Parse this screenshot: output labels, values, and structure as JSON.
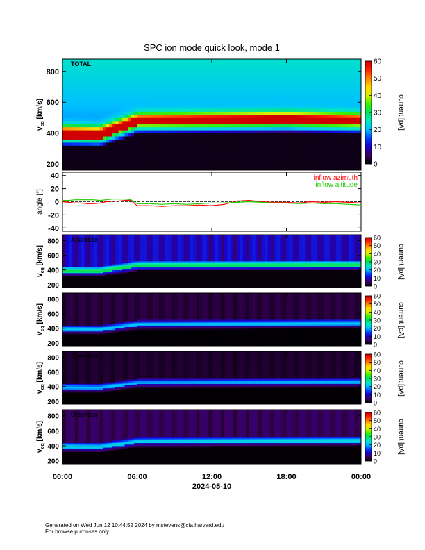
{
  "title": "SPC ion mode quick look, mode 1",
  "date_label": "2024-05-10",
  "x_ticks": [
    "00:00",
    "06:00",
    "12:00",
    "18:00",
    "00:00"
  ],
  "footer": {
    "line1": "Generated on Wed Jun 12 10:44:52 2024 by mstevens@cfa.harvard.edu",
    "line2": "For browse purposes only."
  },
  "colorbar": {
    "label": "current [pA]",
    "ticks": [
      0,
      10,
      20,
      30,
      40,
      50,
      60
    ],
    "range": [
      0,
      60
    ],
    "stops": [
      "#000000",
      "#3b005a",
      "#1b00c8",
      "#0040ff",
      "#00c0ff",
      "#00e8c0",
      "#00e060",
      "#40f000",
      "#d8f000",
      "#ffd800",
      "#ff8000",
      "#ff2000",
      "#d00000"
    ]
  },
  "chart_data": [
    {
      "type": "heatmap",
      "panel": "total",
      "label": "TOTAL",
      "ylabel": "v",
      "ylabel_sub": "eq",
      "ylabel_unit": " [km/s]",
      "ylim": [
        160,
        880
      ],
      "yticks": [
        200,
        400,
        600,
        800
      ],
      "xlim_hours": [
        0,
        24
      ],
      "peak_velocity_kms": [
        {
          "t": 0,
          "v": 390
        },
        {
          "t": 3,
          "v": 385
        },
        {
          "t": 6,
          "v": 470
        },
        {
          "t": 12,
          "v": 475
        },
        {
          "t": 18,
          "v": 480
        },
        {
          "t": 24,
          "v": 470
        }
      ],
      "peak_current_pA": 60,
      "background_current_pA": 24
    },
    {
      "type": "line",
      "panel": "angle",
      "ylabel": "angle [°]",
      "ylim": [
        -45,
        45
      ],
      "yticks": [
        -40,
        -20,
        0,
        20,
        40
      ],
      "xlim_hours": [
        0,
        24
      ],
      "series": [
        {
          "name": "inflow azimuth",
          "color": "#ff0000",
          "x": [
            0,
            0.5,
            1,
            1.5,
            2,
            2.5,
            3,
            3.5,
            4,
            4.5,
            5,
            5.5,
            6,
            7,
            8,
            9,
            10,
            11,
            12,
            13,
            14,
            15,
            16,
            17,
            18,
            19,
            20,
            21,
            22,
            23,
            24
          ],
          "y": [
            0,
            -1,
            -2,
            -2,
            -3,
            -3,
            -2,
            0,
            1,
            1,
            2,
            2,
            -6,
            -6,
            -7,
            -6,
            -6,
            -5,
            -6,
            -4,
            1,
            2,
            0,
            -1,
            -1,
            -2,
            0,
            -1,
            0,
            -1,
            -2
          ]
        },
        {
          "name": "inflow altitude",
          "color": "#22cc00",
          "x": [
            0,
            0.5,
            1,
            1.5,
            2,
            2.5,
            3,
            3.5,
            4,
            4.5,
            5,
            5.5,
            6,
            7,
            8,
            9,
            10,
            11,
            12,
            13,
            14,
            15,
            16,
            17,
            18,
            19,
            20,
            21,
            22,
            23,
            24
          ],
          "y": [
            2,
            2,
            3,
            3,
            3,
            3,
            2,
            3,
            4,
            4,
            4,
            3,
            -3,
            -3,
            -4,
            -3,
            -4,
            -3,
            -2,
            -2,
            -1,
            0,
            -1,
            -2,
            -2,
            -3,
            -2,
            -3,
            -3,
            -4,
            -5
          ]
        }
      ]
    },
    {
      "type": "heatmap",
      "panel": "sensor_a",
      "label": "A sensor",
      "ylabel": "v",
      "ylabel_sub": "eq",
      "ylabel_unit": " [km/s]",
      "ylim": [
        160,
        880
      ],
      "yticks": [
        200,
        400,
        600,
        800
      ],
      "peak_velocity_kms": [
        {
          "t": 0,
          "v": 390
        },
        {
          "t": 3,
          "v": 385
        },
        {
          "t": 6,
          "v": 460
        },
        {
          "t": 24,
          "v": 470
        }
      ],
      "peak_current_pA": 22,
      "background_current_pA": 12
    },
    {
      "type": "heatmap",
      "panel": "sensor_b",
      "label": "",
      "ylabel": "v",
      "ylabel_sub": "eq",
      "ylabel_unit": " [km/s]",
      "ylim": [
        160,
        880
      ],
      "yticks": [
        200,
        400,
        600,
        800
      ],
      "peak_velocity_kms": [
        {
          "t": 0,
          "v": 390
        },
        {
          "t": 3,
          "v": 385
        },
        {
          "t": 6,
          "v": 450
        },
        {
          "t": 24,
          "v": 470
        }
      ],
      "peak_current_pA": 18,
      "background_current_pA": 4
    },
    {
      "type": "heatmap",
      "panel": "sensor_c",
      "label": "C sensor",
      "ylabel": "v",
      "ylabel_sub": "eq",
      "ylabel_unit": " [km/s]",
      "ylim": [
        160,
        880
      ],
      "yticks": [
        200,
        400,
        600,
        800
      ],
      "peak_velocity_kms": [
        {
          "t": 0,
          "v": 390
        },
        {
          "t": 3,
          "v": 385
        },
        {
          "t": 6,
          "v": 450
        },
        {
          "t": 24,
          "v": 460
        }
      ],
      "peak_current_pA": 18,
      "background_current_pA": 3
    },
    {
      "type": "heatmap",
      "panel": "sensor_d",
      "label": "D sensor",
      "ylabel": "v",
      "ylabel_sub": "eq",
      "ylabel_unit": " [km/s]",
      "ylim": [
        160,
        880
      ],
      "yticks": [
        200,
        400,
        600,
        800
      ],
      "peak_velocity_kms": [
        {
          "t": 0,
          "v": 390
        },
        {
          "t": 3,
          "v": 385
        },
        {
          "t": 6,
          "v": 455
        },
        {
          "t": 24,
          "v": 470
        }
      ],
      "peak_current_pA": 18,
      "background_current_pA": 6
    }
  ]
}
